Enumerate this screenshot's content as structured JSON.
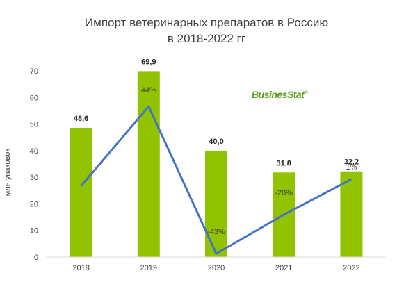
{
  "title_line1": "Импорт ветеринарных препаратов в Россию",
  "title_line2": "в 2018-2022 гг",
  "logo": {
    "text": "BusinesStat",
    "mark": "®"
  },
  "colors": {
    "bar": "#92C300",
    "line": "#4472C4",
    "axis": "#D9D9D9",
    "text": "#404040"
  },
  "chart_data": {
    "type": "bar",
    "categories": [
      "2018",
      "2019",
      "2020",
      "2021",
      "2022"
    ],
    "values": [
      48.6,
      69.9,
      40.0,
      31.8,
      32.2
    ],
    "value_labels": [
      "48,6",
      "69,9",
      "40,0",
      "31,8",
      "32,2"
    ],
    "ylabel": "млн упаковок",
    "ylim": [
      0,
      70
    ],
    "yticks": [
      0,
      10,
      20,
      30,
      40,
      50,
      60,
      70
    ],
    "grid": false,
    "overlay_series": {
      "type": "line",
      "values": [
        null,
        44,
        -43,
        -20,
        1
      ],
      "labels": [
        "",
        "44%",
        "-43%",
        "-20%",
        "1%"
      ]
    }
  }
}
